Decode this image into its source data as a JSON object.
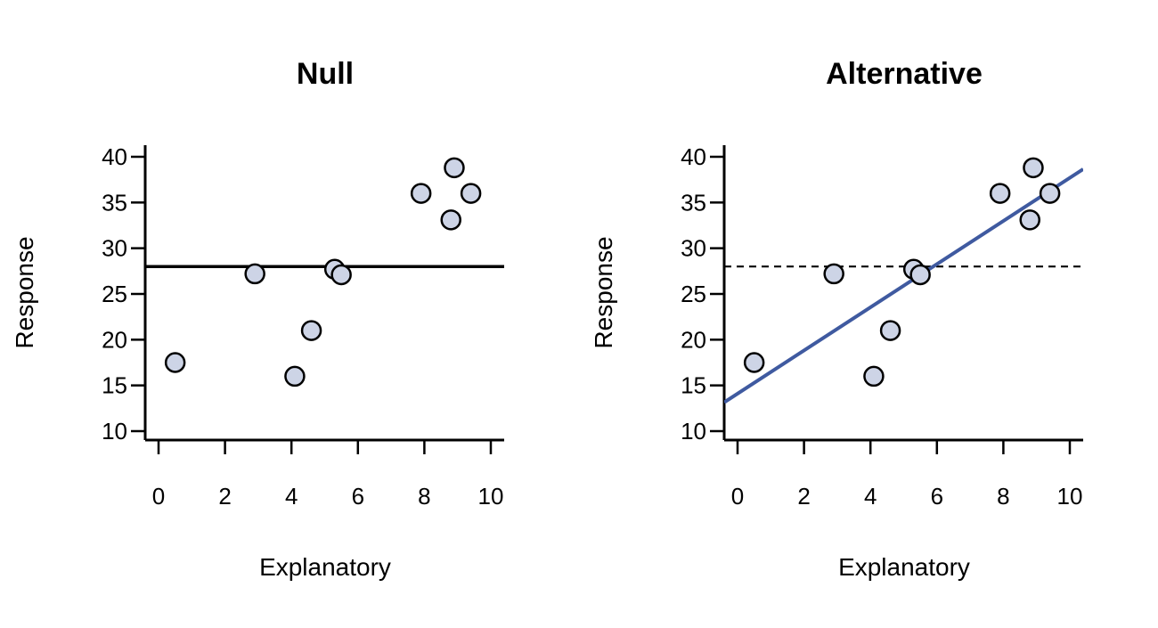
{
  "colors": {
    "point_fill": "#cdd4e6",
    "point_stroke": "#000000",
    "fit_line": "#3f5aa0",
    "mean_line": "#000000"
  },
  "chart_data": [
    {
      "type": "scatter",
      "title": "Null",
      "xlabel": "Explanatory",
      "ylabel": "Response",
      "xlim": [
        -0.4,
        10.4
      ],
      "ylim": [
        9,
        41
      ],
      "xticks": [
        0,
        2,
        4,
        6,
        8,
        10
      ],
      "yticks": [
        10,
        15,
        20,
        25,
        30,
        35,
        40
      ],
      "points": [
        {
          "x": 0.5,
          "y": 17.5
        },
        {
          "x": 2.9,
          "y": 27.2
        },
        {
          "x": 4.1,
          "y": 16.0
        },
        {
          "x": 4.6,
          "y": 21.0
        },
        {
          "x": 5.3,
          "y": 27.7
        },
        {
          "x": 5.5,
          "y": 27.1
        },
        {
          "x": 7.9,
          "y": 36.0
        },
        {
          "x": 8.8,
          "y": 33.1
        },
        {
          "x": 8.9,
          "y": 38.8
        },
        {
          "x": 9.4,
          "y": 36.0
        }
      ],
      "lines": [
        {
          "kind": "horizontal",
          "y": 28.0,
          "style": "solid",
          "color": "#000000"
        }
      ]
    },
    {
      "type": "scatter",
      "title": "Alternative",
      "xlabel": "Explanatory",
      "ylabel": "Response",
      "xlim": [
        -0.4,
        10.4
      ],
      "ylim": [
        9,
        41
      ],
      "xticks": [
        0,
        2,
        4,
        6,
        8,
        10
      ],
      "yticks": [
        10,
        15,
        20,
        25,
        30,
        35,
        40
      ],
      "points": [
        {
          "x": 0.5,
          "y": 17.5
        },
        {
          "x": 2.9,
          "y": 27.2
        },
        {
          "x": 4.1,
          "y": 16.0
        },
        {
          "x": 4.6,
          "y": 21.0
        },
        {
          "x": 5.3,
          "y": 27.7
        },
        {
          "x": 5.5,
          "y": 27.1
        },
        {
          "x": 7.9,
          "y": 36.0
        },
        {
          "x": 8.8,
          "y": 33.1
        },
        {
          "x": 8.9,
          "y": 38.8
        },
        {
          "x": 9.4,
          "y": 36.0
        }
      ],
      "lines": [
        {
          "kind": "horizontal",
          "y": 28.0,
          "style": "dashed",
          "color": "#000000"
        },
        {
          "kind": "regression",
          "intercept": 14.1,
          "slope": 2.36,
          "style": "solid",
          "color": "#3f5aa0"
        }
      ]
    }
  ]
}
